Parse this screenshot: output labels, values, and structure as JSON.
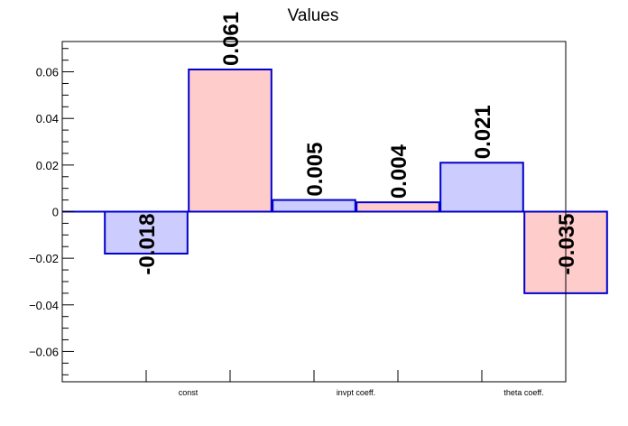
{
  "chart_data": {
    "type": "bar",
    "title": "Values",
    "categories": [
      "const",
      "invpt coeff.",
      "theta coeff."
    ],
    "series": [
      {
        "values": [
          -0.018,
          0.005,
          0.021
        ],
        "labels": [
          "-0.018",
          "0.005",
          "0.021"
        ]
      },
      {
        "values": [
          0.061,
          0.004,
          -0.035
        ],
        "labels": [
          "0.061",
          "0.004",
          "-0.035"
        ]
      }
    ],
    "ylim": [
      -0.073,
      0.073
    ],
    "yticks": [
      -0.06,
      -0.04,
      -0.02,
      0,
      0.02,
      0.04,
      0.06
    ],
    "ytick_labels": [
      "−0.06",
      "−0.04",
      "−0.02",
      "0",
      "0.02",
      "0.04",
      "0.06"
    ],
    "xlabel": "",
    "ylabel": "",
    "grid": false,
    "colors": {
      "series_fill": [
        "#ccccff",
        "#ffcccc"
      ],
      "bar_stroke": "#0000cc",
      "zero_line": "#0000cc",
      "axis": "#000000"
    }
  }
}
